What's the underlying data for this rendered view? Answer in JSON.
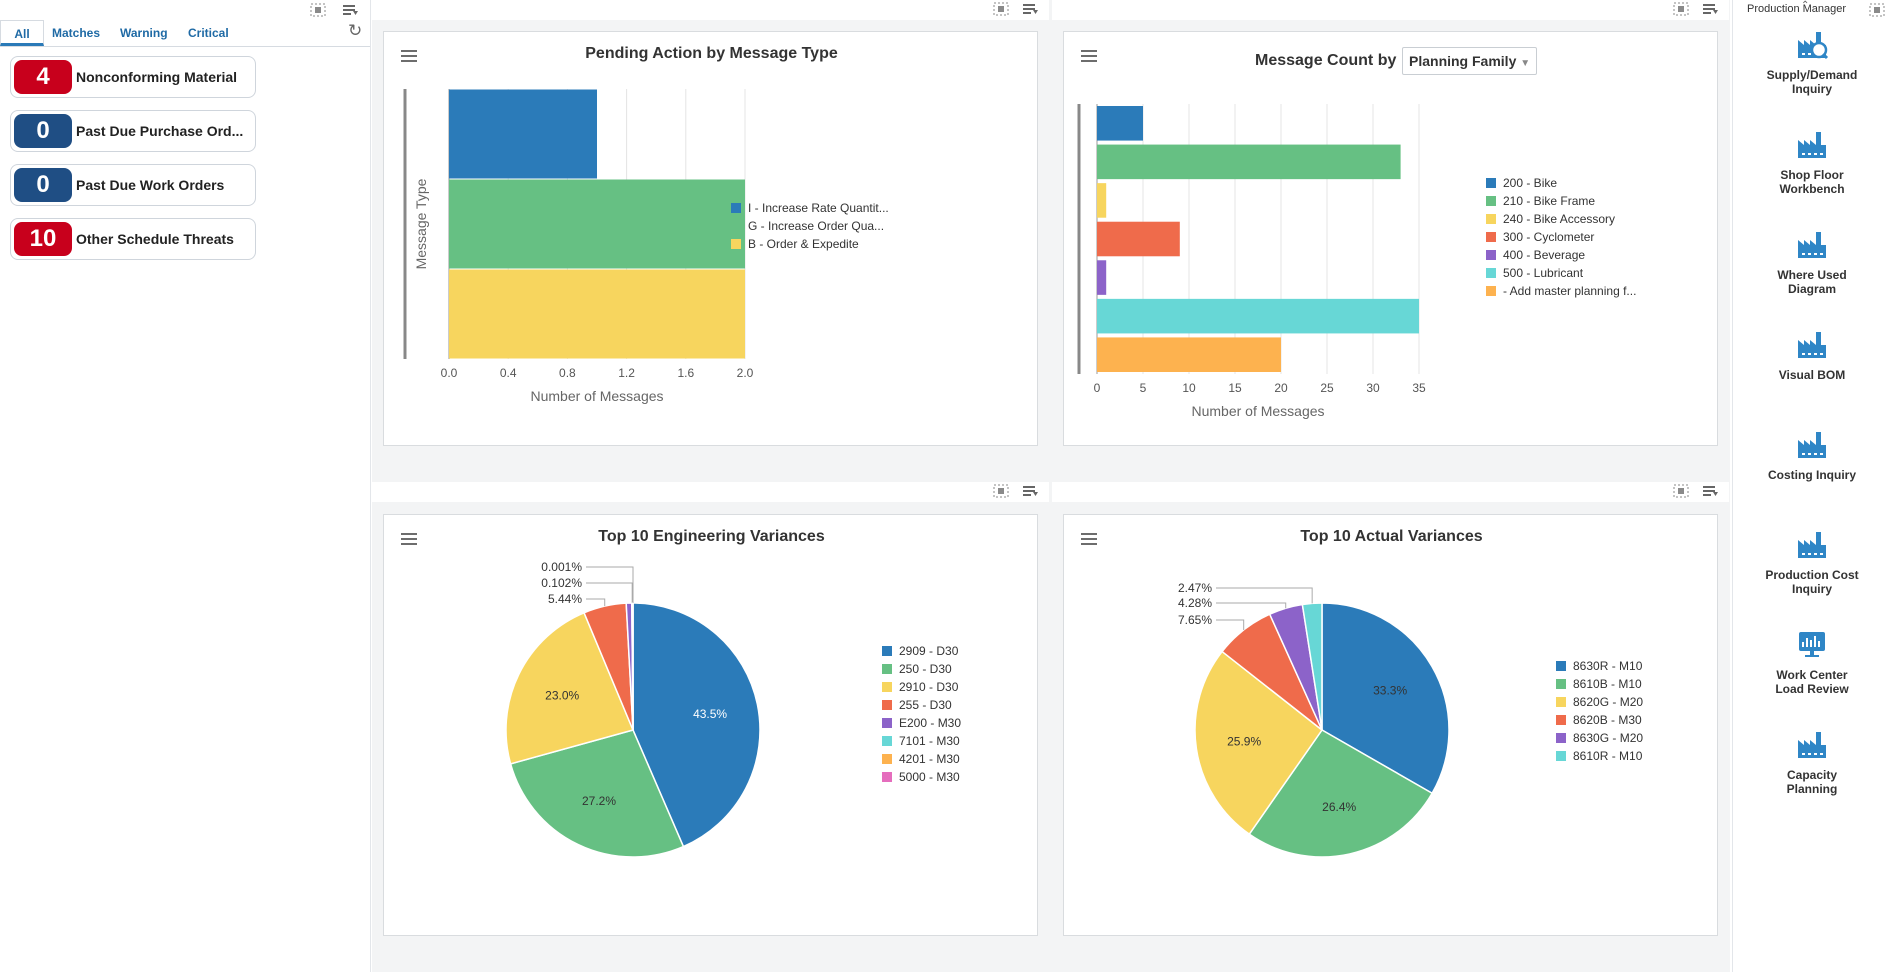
{
  "alerts": {
    "tabs": [
      "All",
      "Matches",
      "Warning",
      "Critical"
    ],
    "items": [
      {
        "count": "4",
        "label": "Nonconforming Material",
        "severity": "critical"
      },
      {
        "count": "0",
        "label": "Past Due Purchase Ord...",
        "severity": "normal"
      },
      {
        "count": "0",
        "label": "Past Due Work Orders",
        "severity": "normal"
      },
      {
        "count": "10",
        "label": "Other Schedule Threats",
        "severity": "critical"
      }
    ]
  },
  "colors": {
    "critical": "#c8001c",
    "normal": "#1f4e84",
    "blue": "#2b7bb9",
    "green": "#66c083",
    "yellow": "#f7d55e",
    "red": "#ef6b4b",
    "purple": "#8c63c9",
    "cyan": "#67d7d6",
    "orange": "#fdb24f",
    "pink": "#e56dbd"
  },
  "launchpad": {
    "title": "Production Manager",
    "items": [
      {
        "label_lines": [
          "Supply/Demand",
          "Inquiry"
        ],
        "icon": "supply-demand-inquiry-icon"
      },
      {
        "label_lines": [
          "Shop Floor",
          "Workbench"
        ],
        "icon": "factory-icon"
      },
      {
        "label_lines": [
          "Where Used",
          "Diagram"
        ],
        "icon": "factory-icon"
      },
      {
        "label_lines": [
          "Visual BOM"
        ],
        "icon": "factory-icon"
      },
      {
        "label_lines": [
          "Costing Inquiry"
        ],
        "icon": "factory-icon"
      },
      {
        "label_lines": [
          "Production Cost",
          "Inquiry"
        ],
        "icon": "factory-icon"
      },
      {
        "label_lines": [
          "Work Center",
          "Load Review"
        ],
        "icon": "monitor-icon"
      },
      {
        "label_lines": [
          "Capacity",
          "Planning"
        ],
        "icon": "factory-icon"
      }
    ]
  },
  "chart_data": [
    {
      "type": "bar",
      "orientation": "horizontal",
      "title": "Pending Action by Message Type",
      "xlabel": "Number of Messages",
      "ylabel": "Message Type",
      "xlim": [
        0,
        2.0
      ],
      "xticks": [
        "0.0",
        "0.4",
        "0.8",
        "1.2",
        "1.6",
        "2.0"
      ],
      "categories": [
        "I - Increase Rate Quantit...",
        "G - Increase Order Qua...",
        "B - Order & Expedite"
      ],
      "values": [
        1,
        2,
        2
      ],
      "colors": [
        "#2b7bb9",
        "#66c083",
        "#f7d55e"
      ]
    },
    {
      "type": "bar",
      "orientation": "horizontal",
      "title": "Message Count by",
      "dropdown": "Planning Family",
      "xlabel": "Number of Messages",
      "xlim": [
        0,
        35
      ],
      "xticks": [
        "0",
        "5",
        "10",
        "15",
        "20",
        "25",
        "30",
        "35"
      ],
      "categories": [
        "200 - Bike",
        "210 - Bike Frame",
        "240 - Bike Accessory",
        "300 - Cyclometer",
        "400 - Beverage",
        "500 - Lubricant",
        "- Add master planning f..."
      ],
      "values": [
        5,
        33,
        1,
        9,
        1,
        35,
        20
      ],
      "colors": [
        "#2b7bb9",
        "#66c083",
        "#f7d55e",
        "#ef6b4b",
        "#8c63c9",
        "#67d7d6",
        "#fdb24f"
      ]
    },
    {
      "type": "pie",
      "title": "Top 10 Engineering Variances",
      "labels": [
        "2909 - D30",
        "250 - D30",
        "2910 - D30",
        "255 - D30",
        "E200 - M30",
        "7101 - M30",
        "4201 - M30",
        "5000 - M30"
      ],
      "values": [
        43.5,
        27.2,
        23.0,
        5.44,
        0.7,
        0.102,
        0.05,
        0.001
      ],
      "slice_labels": [
        "43.5%",
        "27.2%",
        "23.0%",
        "5.44%",
        "",
        "0.102%",
        "",
        "0.001%"
      ],
      "colors": [
        "#2b7bb9",
        "#66c083",
        "#f7d55e",
        "#ef6b4b",
        "#8c63c9",
        "#67d7d6",
        "#fdb24f",
        "#e56dbd"
      ]
    },
    {
      "type": "pie",
      "title": "Top 10 Actual Variances",
      "labels": [
        "8630R - M10",
        "8610B - M10",
        "8620G - M20",
        "8620B - M30",
        "8630G - M20",
        "8610R - M10"
      ],
      "values": [
        33.3,
        26.4,
        25.9,
        7.65,
        4.28,
        2.47
      ],
      "slice_labels": [
        "33.3%",
        "26.4%",
        "25.9%",
        "7.65%",
        "4.28%",
        "2.47%"
      ],
      "colors": [
        "#2b7bb9",
        "#66c083",
        "#f7d55e",
        "#ef6b4b",
        "#8c63c9",
        "#67d7d6"
      ]
    }
  ]
}
